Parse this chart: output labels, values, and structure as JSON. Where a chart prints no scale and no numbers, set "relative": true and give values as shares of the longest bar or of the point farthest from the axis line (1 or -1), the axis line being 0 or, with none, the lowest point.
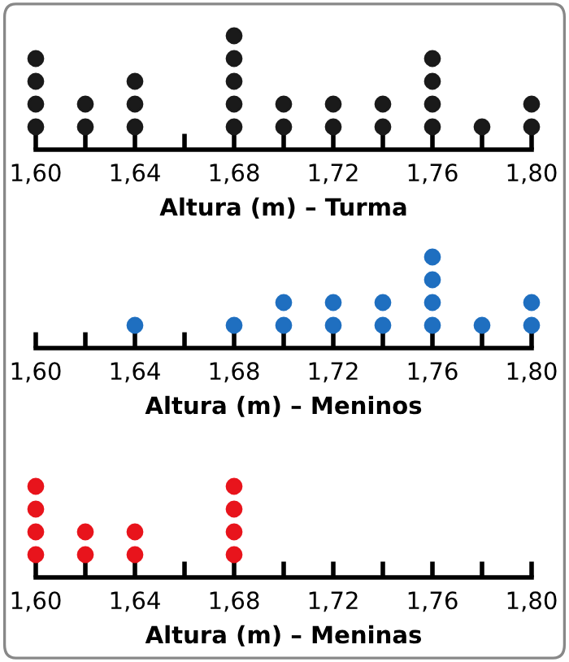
{
  "chart_data": [
    {
      "type": "scatter",
      "relative": true,
      "xlabel": "Altura (m) – Turma",
      "marker": "circle",
      "tick_labels": "x",
      "xlim": [
        1.6,
        1.8
      ],
      "xticks": [
        {
          "value": 1.6,
          "label": "1,60"
        },
        {
          "value": 1.62,
          "label": null
        },
        {
          "value": 1.64,
          "label": "1,64"
        },
        {
          "value": 1.66,
          "label": null
        },
        {
          "value": 1.68,
          "label": "1,68"
        },
        {
          "value": 1.7,
          "label": null
        },
        {
          "value": 1.72,
          "label": "1,72"
        },
        {
          "value": 1.74,
          "label": null
        },
        {
          "value": 1.76,
          "label": "1,76"
        },
        {
          "value": 1.78,
          "label": null
        },
        {
          "value": 1.8,
          "label": "1,80"
        }
      ],
      "series": [
        {
          "color": "#1a1a1a",
          "x": [
            1.6,
            1.6,
            1.6,
            1.6,
            1.62,
            1.62,
            1.64,
            1.64,
            1.64,
            1.68,
            1.68,
            1.68,
            1.68,
            1.68,
            1.7,
            1.7,
            1.72,
            1.72,
            1.74,
            1.74,
            1.76,
            1.76,
            1.76,
            1.76,
            1.78,
            1.8,
            1.8
          ],
          "values": [
            0.2,
            0.4,
            0.6,
            0.8,
            0.2,
            0.4,
            0.2,
            0.4,
            0.6,
            0.2,
            0.4,
            0.6,
            0.8,
            1,
            0.2,
            0.4,
            0.2,
            0.4,
            0.2,
            0.4,
            0.2,
            0.4,
            0.6,
            0.8,
            0.2,
            0.2,
            0.4
          ]
        }
      ]
    },
    {
      "type": "scatter",
      "relative": true,
      "xlabel": "Altura (m) – Meninos",
      "marker": "circle",
      "tick_labels": "x",
      "xlim": [
        1.6,
        1.8
      ],
      "xticks": [
        {
          "value": 1.6,
          "label": "1,60"
        },
        {
          "value": 1.62,
          "label": null
        },
        {
          "value": 1.64,
          "label": "1,64"
        },
        {
          "value": 1.66,
          "label": null
        },
        {
          "value": 1.68,
          "label": "1,68"
        },
        {
          "value": 1.7,
          "label": null
        },
        {
          "value": 1.72,
          "label": "1,72"
        },
        {
          "value": 1.74,
          "label": null
        },
        {
          "value": 1.76,
          "label": "1,76"
        },
        {
          "value": 1.78,
          "label": null
        },
        {
          "value": 1.8,
          "label": "1,80"
        }
      ],
      "series": [
        {
          "color": "#1f6fc0",
          "x": [
            1.64,
            1.68,
            1.7,
            1.7,
            1.72,
            1.72,
            1.74,
            1.74,
            1.76,
            1.76,
            1.76,
            1.76,
            1.78,
            1.8,
            1.8
          ],
          "values": [
            0.25,
            0.25,
            0.25,
            0.5,
            0.25,
            0.5,
            0.25,
            0.5,
            0.25,
            0.5,
            0.75,
            1,
            0.25,
            0.25,
            0.5
          ]
        }
      ]
    },
    {
      "type": "scatter",
      "relative": true,
      "xlabel": "Altura (m) – Meninas",
      "marker": "circle",
      "tick_labels": "x",
      "xlim": [
        1.6,
        1.8
      ],
      "xticks": [
        {
          "value": 1.6,
          "label": "1,60"
        },
        {
          "value": 1.62,
          "label": null
        },
        {
          "value": 1.64,
          "label": "1,64"
        },
        {
          "value": 1.66,
          "label": null
        },
        {
          "value": 1.68,
          "label": "1,68"
        },
        {
          "value": 1.7,
          "label": null
        },
        {
          "value": 1.72,
          "label": "1,72"
        },
        {
          "value": 1.74,
          "label": null
        },
        {
          "value": 1.76,
          "label": "1,76"
        },
        {
          "value": 1.78,
          "label": null
        },
        {
          "value": 1.8,
          "label": "1,80"
        }
      ],
      "series": [
        {
          "color": "#e8141c",
          "x": [
            1.6,
            1.6,
            1.6,
            1.6,
            1.62,
            1.62,
            1.64,
            1.64,
            1.68,
            1.68,
            1.68,
            1.68
          ],
          "values": [
            0.25,
            0.5,
            0.75,
            1,
            0.25,
            0.5,
            0.25,
            0.5,
            0.25,
            0.5,
            0.75,
            1
          ]
        }
      ]
    }
  ]
}
